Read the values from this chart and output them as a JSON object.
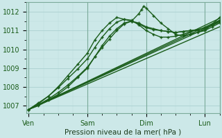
{
  "title": "",
  "xlabel": "Pression niveau de la mer( hPa )",
  "ylabel": "",
  "background_color": "#cce8e8",
  "grid_major_color": "#aad0d0",
  "grid_minor_color": "#bbdcdc",
  "line_color": "#1a5c1a",
  "x_ticks": [
    0,
    24,
    48,
    72
  ],
  "x_tick_labels": [
    "Ven",
    "Sam",
    "Dim",
    "Lun"
  ],
  "ylim": [
    1006.6,
    1012.5
  ],
  "yticks": [
    1007,
    1008,
    1009,
    1010,
    1011,
    1012
  ],
  "xlim": [
    -1,
    78
  ],
  "lines": [
    {
      "x": [
        0,
        78
      ],
      "y": [
        1006.8,
        1011.2
      ],
      "marker": null,
      "lw": 1.0,
      "ms": 0
    },
    {
      "x": [
        0,
        78
      ],
      "y": [
        1006.8,
        1011.45
      ],
      "marker": null,
      "lw": 1.0,
      "ms": 0
    },
    {
      "x": [
        0,
        78
      ],
      "y": [
        1006.8,
        1011.55
      ],
      "marker": null,
      "lw": 1.0,
      "ms": 0
    },
    {
      "x": [
        0,
        78
      ],
      "y": [
        1006.8,
        1011.65
      ],
      "marker": null,
      "lw": 1.0,
      "ms": 0
    },
    {
      "x": [
        0,
        4,
        8,
        12,
        16,
        20,
        24,
        27,
        30,
        33,
        36,
        39,
        42,
        45,
        48,
        51,
        54,
        57,
        60,
        63,
        66,
        69,
        72,
        75,
        78
      ],
      "y": [
        1006.8,
        1007.0,
        1007.3,
        1007.6,
        1008.0,
        1008.5,
        1009.0,
        1009.6,
        1010.2,
        1010.7,
        1011.1,
        1011.4,
        1011.5,
        1011.4,
        1011.2,
        1011.1,
        1011.0,
        1010.95,
        1010.9,
        1010.95,
        1011.0,
        1011.05,
        1011.1,
        1011.3,
        1011.5
      ],
      "marker": "+",
      "lw": 1.0,
      "ms": 3
    },
    {
      "x": [
        0,
        4,
        8,
        12,
        16,
        20,
        24,
        27,
        30,
        33,
        36,
        39,
        42,
        45,
        46,
        47,
        48,
        51,
        54,
        57,
        60,
        63,
        66,
        69,
        72,
        75,
        78
      ],
      "y": [
        1006.8,
        1007.1,
        1007.5,
        1008.0,
        1008.6,
        1009.2,
        1009.8,
        1010.5,
        1011.0,
        1011.4,
        1011.7,
        1011.6,
        1011.5,
        1011.9,
        1012.1,
        1012.3,
        1012.2,
        1011.8,
        1011.4,
        1011.1,
        1010.8,
        1010.7,
        1010.8,
        1010.9,
        1011.0,
        1011.35,
        1011.7
      ],
      "marker": "+",
      "lw": 1.0,
      "ms": 3
    },
    {
      "x": [
        0,
        4,
        8,
        12,
        16,
        20,
        24,
        27,
        30,
        33,
        36,
        39,
        42,
        45,
        48,
        51,
        54,
        57,
        60,
        63,
        66,
        69,
        72,
        75,
        78
      ],
      "y": [
        1006.8,
        1007.05,
        1007.35,
        1007.7,
        1008.1,
        1008.55,
        1009.05,
        1009.6,
        1010.1,
        1010.55,
        1011.0,
        1011.35,
        1011.5,
        1011.35,
        1011.15,
        1011.05,
        1011.0,
        1010.95,
        1010.9,
        1010.95,
        1011.0,
        1011.0,
        1011.0,
        1011.2,
        1011.4
      ],
      "marker": "+",
      "lw": 1.0,
      "ms": 3
    },
    {
      "x": [
        0,
        4,
        8,
        12,
        16,
        20,
        24,
        27,
        30,
        33,
        36,
        39,
        42,
        45,
        48,
        51,
        54,
        57,
        60,
        63,
        66,
        69,
        72,
        75,
        78
      ],
      "y": [
        1006.8,
        1007.15,
        1007.5,
        1007.95,
        1008.45,
        1008.95,
        1009.5,
        1010.1,
        1010.65,
        1011.1,
        1011.45,
        1011.6,
        1011.55,
        1011.3,
        1011.0,
        1010.8,
        1010.65,
        1010.65,
        1010.7,
        1010.8,
        1010.95,
        1011.05,
        1011.15,
        1011.3,
        1011.55
      ],
      "marker": "+",
      "lw": 1.0,
      "ms": 3
    }
  ]
}
